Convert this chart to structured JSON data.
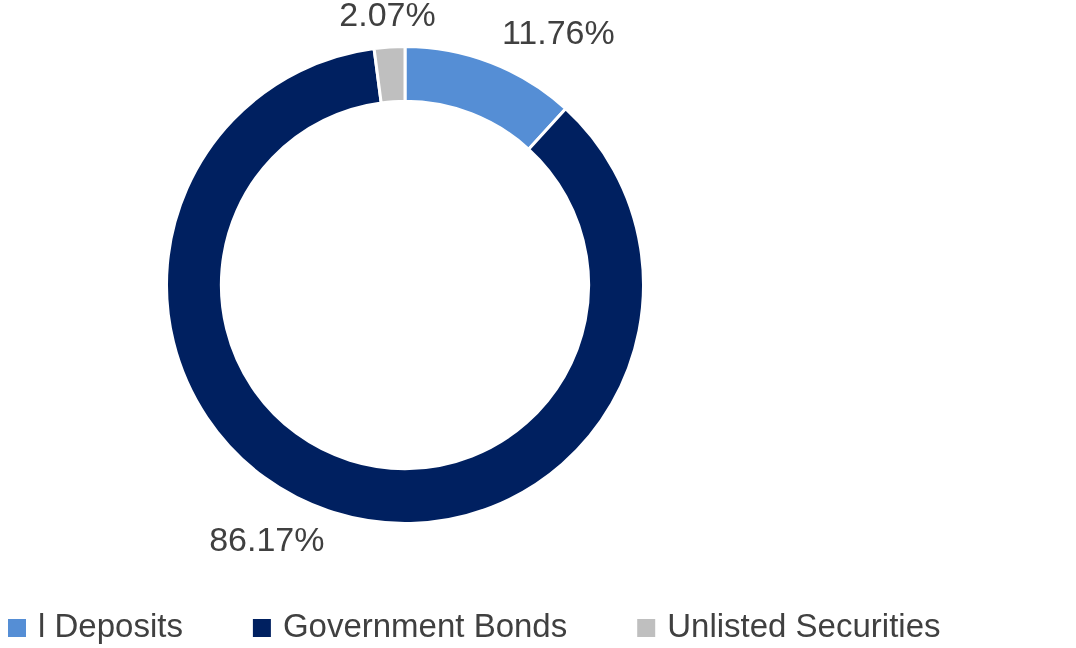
{
  "chart_data": {
    "type": "donut",
    "categories": [
      "l Deposits",
      "Government Bonds",
      "Unlisted Securities"
    ],
    "values": [
      11.76,
      86.17,
      2.07
    ],
    "colors": [
      "#558ed5",
      "#002060",
      "#bfbfbf"
    ],
    "value_labels": [
      "11.76%",
      "86.17%",
      "2.07%"
    ],
    "legend": "bottom"
  }
}
